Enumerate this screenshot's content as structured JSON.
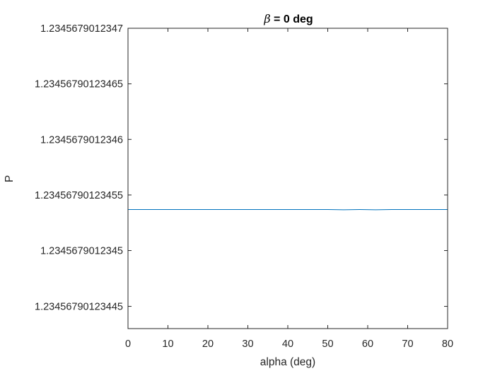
{
  "chart_data": {
    "type": "line",
    "title_symbol": "β",
    "title_rest": " = 0 deg",
    "xlabel": "alpha (deg)",
    "ylabel": "P",
    "xlim": [
      0,
      80
    ],
    "xticks": [
      0,
      10,
      20,
      30,
      40,
      50,
      60,
      70,
      80
    ],
    "xtick_labels": [
      "0",
      "10",
      "20",
      "30",
      "40",
      "50",
      "60",
      "70",
      "80"
    ],
    "ylim": [
      1.23456790123443,
      1.2345679012347
    ],
    "yticks": [
      1.23456790123445,
      1.2345679012345,
      1.23456790123455,
      1.2345679012346,
      1.23456790123465,
      1.2345679012347
    ],
    "ytick_labels": [
      "1.23456790123445",
      "1.2345679012345",
      "1.23456790123455",
      "1.2345679012346",
      "1.23456790123465",
      "1.2345679012347"
    ],
    "series": [
      {
        "name": "P",
        "color": "#0072BD",
        "x": [
          0,
          10,
          20,
          30,
          40,
          50,
          54,
          58,
          62,
          66,
          70,
          80
        ],
        "y": [
          1.234567901234537,
          1.234567901234537,
          1.234567901234537,
          1.234567901234537,
          1.234567901234537,
          1.234567901234537,
          1.2345679012345367,
          1.234567901234537,
          1.2345679012345367,
          1.234567901234537,
          1.234567901234537,
          1.234567901234537
        ]
      }
    ],
    "grid": false,
    "box": true
  }
}
